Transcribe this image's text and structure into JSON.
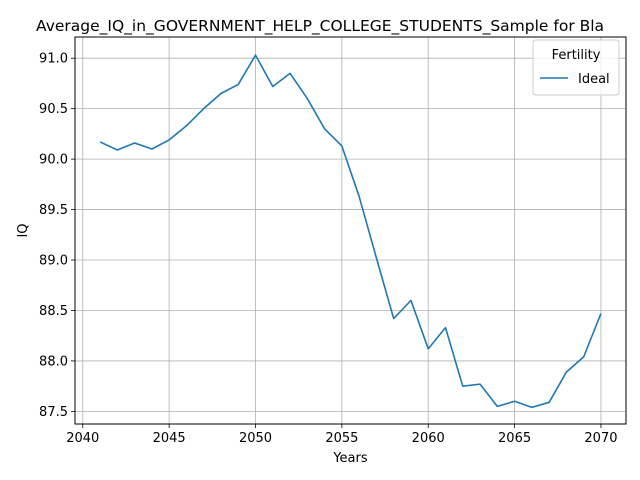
{
  "chart_data": {
    "type": "line",
    "title": "Average_IQ_in_GOVERNMENT_HELP_COLLEGE_STUDENTS_Sample for Bla",
    "xlabel": "Years",
    "ylabel": "IQ",
    "xlim": [
      2039.55,
      2071.45
    ],
    "ylim": [
      87.375,
      91.21
    ],
    "xticks": [
      2040,
      2045,
      2050,
      2055,
      2060,
      2065,
      2070
    ],
    "yticks": [
      87.5,
      88.0,
      88.5,
      89.0,
      89.5,
      90.0,
      90.5,
      91.0
    ],
    "xtick_labels": [
      "2040",
      "2045",
      "2050",
      "2055",
      "2060",
      "2065",
      "2070"
    ],
    "ytick_labels": [
      "87.5",
      "88.0",
      "88.5",
      "89.0",
      "89.5",
      "90.0",
      "90.5",
      "91.0"
    ],
    "grid": true,
    "legend": {
      "title": "Fertility",
      "placement": "top-right"
    },
    "series": [
      {
        "name": "Ideal",
        "color": "#1f77b4",
        "x": [
          2041,
          2042,
          2043,
          2044,
          2045,
          2046,
          2047,
          2048,
          2049,
          2050,
          2051,
          2052,
          2053,
          2054,
          2055,
          2056,
          2057,
          2058,
          2059,
          2060,
          2061,
          2062,
          2063,
          2064,
          2065,
          2066,
          2067,
          2068,
          2069,
          2070
        ],
        "y": [
          90.17,
          90.09,
          90.16,
          90.1,
          90.19,
          90.33,
          90.5,
          90.65,
          90.74,
          91.03,
          90.72,
          90.85,
          90.6,
          90.3,
          90.13,
          89.63,
          89.02,
          88.42,
          88.6,
          88.12,
          88.33,
          87.75,
          87.77,
          87.55,
          87.6,
          87.54,
          87.59,
          87.89,
          88.04,
          88.47
        ]
      }
    ]
  }
}
